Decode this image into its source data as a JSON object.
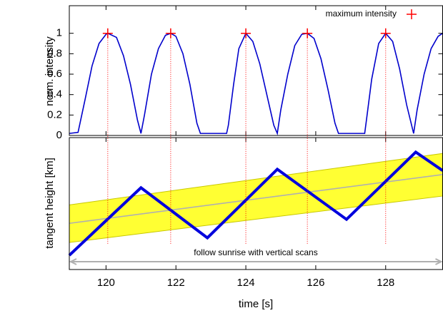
{
  "chart_data": [
    {
      "type": "line",
      "ylabel": "norm. intensity",
      "xlim": [
        118.95,
        129.63
      ],
      "ylim": [
        0,
        1.27
      ],
      "yticks": [
        0,
        0.2,
        0.4,
        0.6,
        0.8,
        1
      ],
      "legend": "upper right",
      "series": [
        {
          "kind": "line",
          "color": "#0000cc",
          "x": [
            118.95,
            119.2,
            119.4,
            119.6,
            119.8,
            120.0,
            120.05,
            120.3,
            120.5,
            120.7,
            120.9,
            121.0,
            121.1,
            121.3,
            121.5,
            121.7,
            121.85,
            122.0,
            122.2,
            122.4,
            122.6,
            122.7,
            123.45,
            123.5,
            123.65,
            123.8,
            124.0,
            124.2,
            124.4,
            124.6,
            124.8,
            124.9,
            125.0,
            125.2,
            125.4,
            125.6,
            125.76,
            125.95,
            126.15,
            126.35,
            126.55,
            126.65,
            127.4,
            127.45,
            127.6,
            127.8,
            128.0,
            128.2,
            128.4,
            128.6,
            128.8,
            128.9,
            129.1,
            129.3,
            129.5,
            129.63
          ],
          "values": [
            0.02,
            0.03,
            0.35,
            0.68,
            0.9,
            0.99,
            1,
            0.96,
            0.78,
            0.5,
            0.15,
            0.02,
            0.2,
            0.6,
            0.85,
            0.98,
            1,
            0.97,
            0.8,
            0.5,
            0.12,
            0.02,
            0.02,
            0.1,
            0.5,
            0.85,
            1,
            0.92,
            0.7,
            0.4,
            0.1,
            0.02,
            0.25,
            0.6,
            0.88,
            0.99,
            1,
            0.95,
            0.75,
            0.45,
            0.12,
            0.02,
            0.02,
            0.15,
            0.55,
            0.9,
            1,
            0.92,
            0.65,
            0.3,
            0.02,
            0.25,
            0.6,
            0.85,
            0.97,
            1
          ]
        },
        {
          "kind": "markers",
          "name": "maximum intensity",
          "color": "#ff0000",
          "drop_lines": true,
          "x": [
            120.05,
            121.85,
            124.0,
            125.76,
            128.0
          ],
          "values": [
            1,
            1,
            1,
            1,
            1
          ]
        }
      ]
    },
    {
      "type": "line",
      "ylabel": "tangent height [km]",
      "xlabel": "time [s]",
      "xlim": [
        118.95,
        129.63
      ],
      "ylim": [
        0,
        1
      ],
      "xticks": [
        120,
        122,
        124,
        126,
        128
      ],
      "annotation": "follow sunrise with vertical scans",
      "series": [
        {
          "kind": "band",
          "color": "#ffff33",
          "x": [
            118.95,
            129.63
          ],
          "lower": [
            0.205,
            0.557
          ],
          "upper": [
            0.49,
            0.88
          ]
        },
        {
          "kind": "line",
          "color": "#b0b0b0",
          "x": [
            118.95,
            129.63
          ],
          "values": [
            0.35,
            0.72
          ]
        },
        {
          "kind": "line",
          "color": "#0000dd",
          "width": 4,
          "x": [
            118.95,
            121.0,
            122.9,
            124.9,
            126.88,
            128.86,
            129.63
          ],
          "values": [
            0.108,
            0.62,
            0.24,
            0.76,
            0.38,
            0.89,
            0.75
          ]
        }
      ]
    }
  ]
}
